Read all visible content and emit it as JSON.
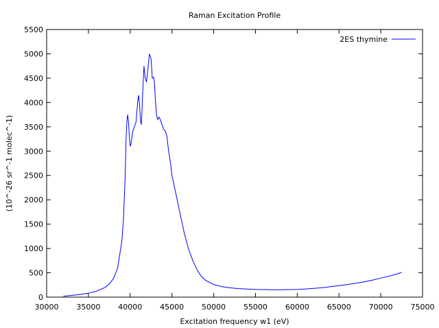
{
  "chart_data": {
    "type": "line",
    "title": "Raman Excitation Profile",
    "xlabel": "Excitation frequency w1 (eV)",
    "ylabel": "(10^-26 sr^-1 molec^-1)",
    "xlim": [
      30000,
      75000
    ],
    "ylim": [
      0,
      5500
    ],
    "xticks": [
      30000,
      35000,
      40000,
      45000,
      50000,
      55000,
      60000,
      65000,
      70000,
      75000
    ],
    "yticks": [
      0,
      500,
      1000,
      1500,
      2000,
      2500,
      3000,
      3500,
      4000,
      4500,
      5000,
      5500
    ],
    "grid": false,
    "legend_position": "top-right",
    "series": [
      {
        "name": "2ES thymine",
        "color": "#0000ff",
        "points": [
          [
            32000,
            20
          ],
          [
            33000,
            35
          ],
          [
            34000,
            55
          ],
          [
            35000,
            80
          ],
          [
            36000,
            125
          ],
          [
            37000,
            200
          ],
          [
            37500,
            270
          ],
          [
            38000,
            380
          ],
          [
            38500,
            600
          ],
          [
            39000,
            1150
          ],
          [
            39200,
            1600
          ],
          [
            39400,
            2500
          ],
          [
            39500,
            3200
          ],
          [
            39600,
            3600
          ],
          [
            39700,
            3750
          ],
          [
            39800,
            3600
          ],
          [
            39900,
            3300
          ],
          [
            40000,
            3100
          ],
          [
            40100,
            3150
          ],
          [
            40300,
            3400
          ],
          [
            40500,
            3500
          ],
          [
            40700,
            3600
          ],
          [
            40900,
            4000
          ],
          [
            41000,
            4150
          ],
          [
            41100,
            4000
          ],
          [
            41250,
            3600
          ],
          [
            41350,
            3550
          ],
          [
            41500,
            4200
          ],
          [
            41650,
            4750
          ],
          [
            41800,
            4500
          ],
          [
            41950,
            4420
          ],
          [
            42100,
            4650
          ],
          [
            42300,
            5000
          ],
          [
            42500,
            4900
          ],
          [
            42650,
            4500
          ],
          [
            42800,
            4520
          ],
          [
            42900,
            4420
          ],
          [
            43000,
            4100
          ],
          [
            43150,
            3750
          ],
          [
            43300,
            3650
          ],
          [
            43450,
            3700
          ],
          [
            43600,
            3650
          ],
          [
            43800,
            3550
          ],
          [
            44000,
            3450
          ],
          [
            44200,
            3420
          ],
          [
            44400,
            3300
          ],
          [
            44600,
            3000
          ],
          [
            44800,
            2800
          ],
          [
            45000,
            2500
          ],
          [
            45500,
            2100
          ],
          [
            46000,
            1700
          ],
          [
            46500,
            1300
          ],
          [
            47000,
            980
          ],
          [
            47500,
            750
          ],
          [
            48000,
            560
          ],
          [
            48500,
            430
          ],
          [
            49000,
            350
          ],
          [
            49500,
            300
          ],
          [
            50000,
            260
          ],
          [
            51000,
            215
          ],
          [
            52000,
            190
          ],
          [
            53000,
            175
          ],
          [
            54000,
            165
          ],
          [
            55000,
            158
          ],
          [
            56000,
            155
          ],
          [
            57000,
            152
          ],
          [
            58000,
            152
          ],
          [
            59000,
            155
          ],
          [
            60000,
            160
          ],
          [
            61000,
            168
          ],
          [
            62000,
            180
          ],
          [
            63000,
            195
          ],
          [
            64000,
            215
          ],
          [
            65000,
            235
          ],
          [
            66000,
            260
          ],
          [
            67000,
            285
          ],
          [
            68000,
            315
          ],
          [
            69000,
            350
          ],
          [
            70000,
            390
          ],
          [
            71000,
            430
          ],
          [
            72000,
            480
          ],
          [
            72500,
            510
          ]
        ]
      }
    ]
  }
}
